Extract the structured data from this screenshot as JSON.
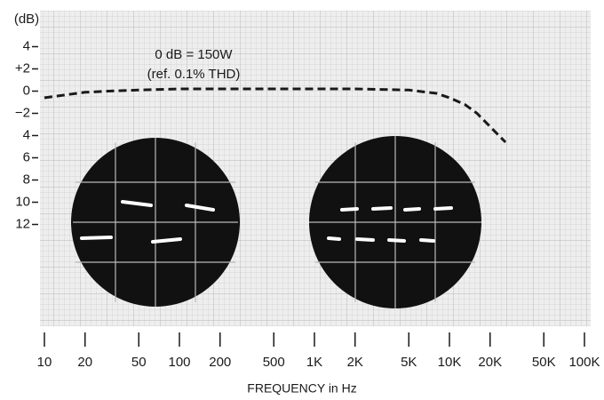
{
  "chart_data": {
    "type": "line",
    "y_axis_label": "(dB)",
    "x_axis_label": "FREQUENCY in Hz",
    "annotations": [
      "0 dB = 150W",
      "(ref. 0.1% THD)"
    ],
    "x": [
      10,
      15,
      20,
      30,
      50,
      100,
      200,
      500,
      1000,
      2000,
      5000,
      8000,
      10000,
      13000,
      16000,
      20000,
      26000
    ],
    "values": [
      -0.6,
      -0.3,
      -0.1,
      0,
      0.1,
      0.2,
      0.2,
      0.2,
      0.2,
      0.2,
      0.1,
      -0.2,
      -0.6,
      -1.2,
      -2,
      -3.2,
      -4.6
    ],
    "color": "#1a1a1a",
    "line_style": "dashed",
    "xscale": "log",
    "xlim": [
      10,
      100000
    ],
    "xticks": [
      10,
      20,
      50,
      100,
      200,
      500,
      {
        "value": 1000,
        "label": "1K"
      },
      {
        "value": 2000,
        "label": "2K"
      },
      {
        "value": 5000,
        "label": "5K"
      },
      {
        "value": 10000,
        "label": "10K"
      },
      {
        "value": 20000,
        "label": "20K"
      },
      {
        "value": 50000,
        "label": "50K"
      },
      {
        "value": 100000,
        "label": "100K"
      }
    ],
    "ylim": [
      -21,
      7
    ],
    "yticks": [
      4,
      {
        "value": 2,
        "label": "+2"
      },
      0,
      {
        "value": -2,
        "label": "−2"
      },
      {
        "value": -4,
        "label": "4"
      },
      {
        "value": -6,
        "label": "6"
      },
      {
        "value": -8,
        "label": "8"
      },
      {
        "value": -10,
        "label": "10"
      },
      {
        "value": -12,
        "label": "12"
      }
    ]
  }
}
